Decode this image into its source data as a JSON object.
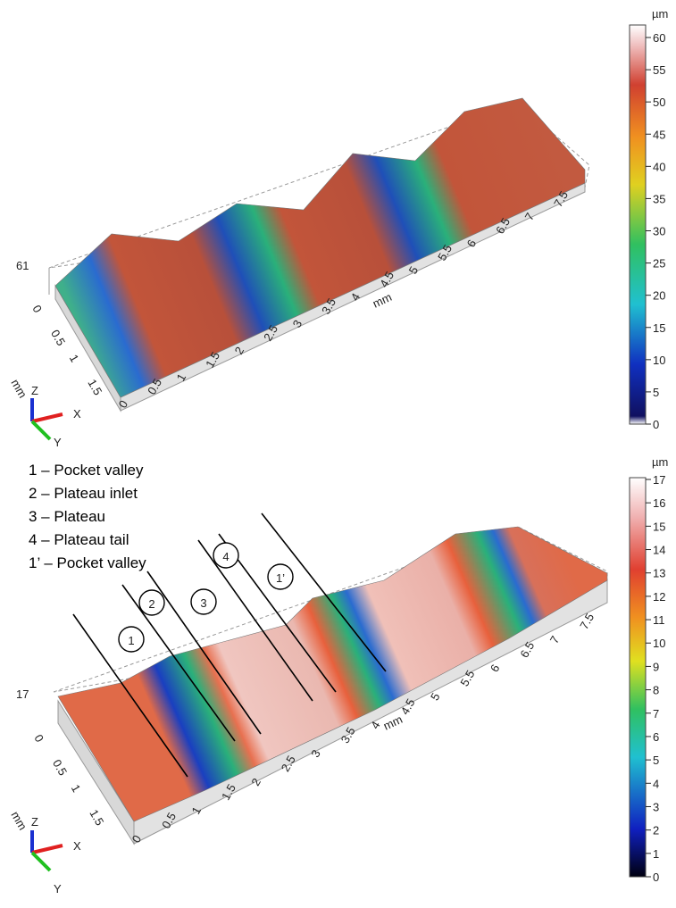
{
  "top_plot": {
    "z_max_label": "61",
    "x_axis": {
      "unit": "mm",
      "ticks": [
        "0",
        "0.5",
        "1",
        "1.5",
        "2",
        "2.5",
        "3",
        "3.5",
        "4",
        "4.5",
        "5",
        "5.5",
        "6",
        "6.5",
        "7",
        "7.5"
      ]
    },
    "y_axis": {
      "unit": "mm",
      "ticks": [
        "0",
        "0.5",
        "1",
        "1.5"
      ]
    },
    "triad": {
      "z": "Z",
      "x": "X",
      "y": "Y"
    },
    "colorbar": {
      "unit": "µm",
      "ticks": [
        0,
        5,
        10,
        15,
        20,
        25,
        30,
        35,
        40,
        45,
        50,
        55,
        60
      ]
    }
  },
  "legend": [
    "1 – Pocket valley",
    "2 – Plateau inlet",
    "3 – Plateau",
    "4 – Plateau tail",
    "1’ – Pocket valley"
  ],
  "bottom_plot": {
    "z_max_label": "17",
    "x_axis": {
      "unit": "mm",
      "ticks": [
        "0",
        "0.5",
        "1",
        "1.5",
        "2",
        "2.5",
        "3",
        "3.5",
        "4",
        "4.5",
        "5",
        "5.5",
        "6",
        "6.5",
        "7",
        "7.5"
      ]
    },
    "y_axis": {
      "unit": "mm",
      "ticks": [
        "0",
        "0.5",
        "1",
        "1.5"
      ]
    },
    "triad": {
      "z": "Z",
      "x": "X",
      "y": "Y"
    },
    "markers": [
      "1",
      "2",
      "3",
      "4",
      "1’"
    ],
    "colorbar": {
      "unit": "µm",
      "ticks": [
        0,
        1,
        2,
        3,
        4,
        5,
        6,
        7,
        8,
        9,
        10,
        11,
        12,
        13,
        14,
        15,
        16,
        17
      ]
    }
  }
}
